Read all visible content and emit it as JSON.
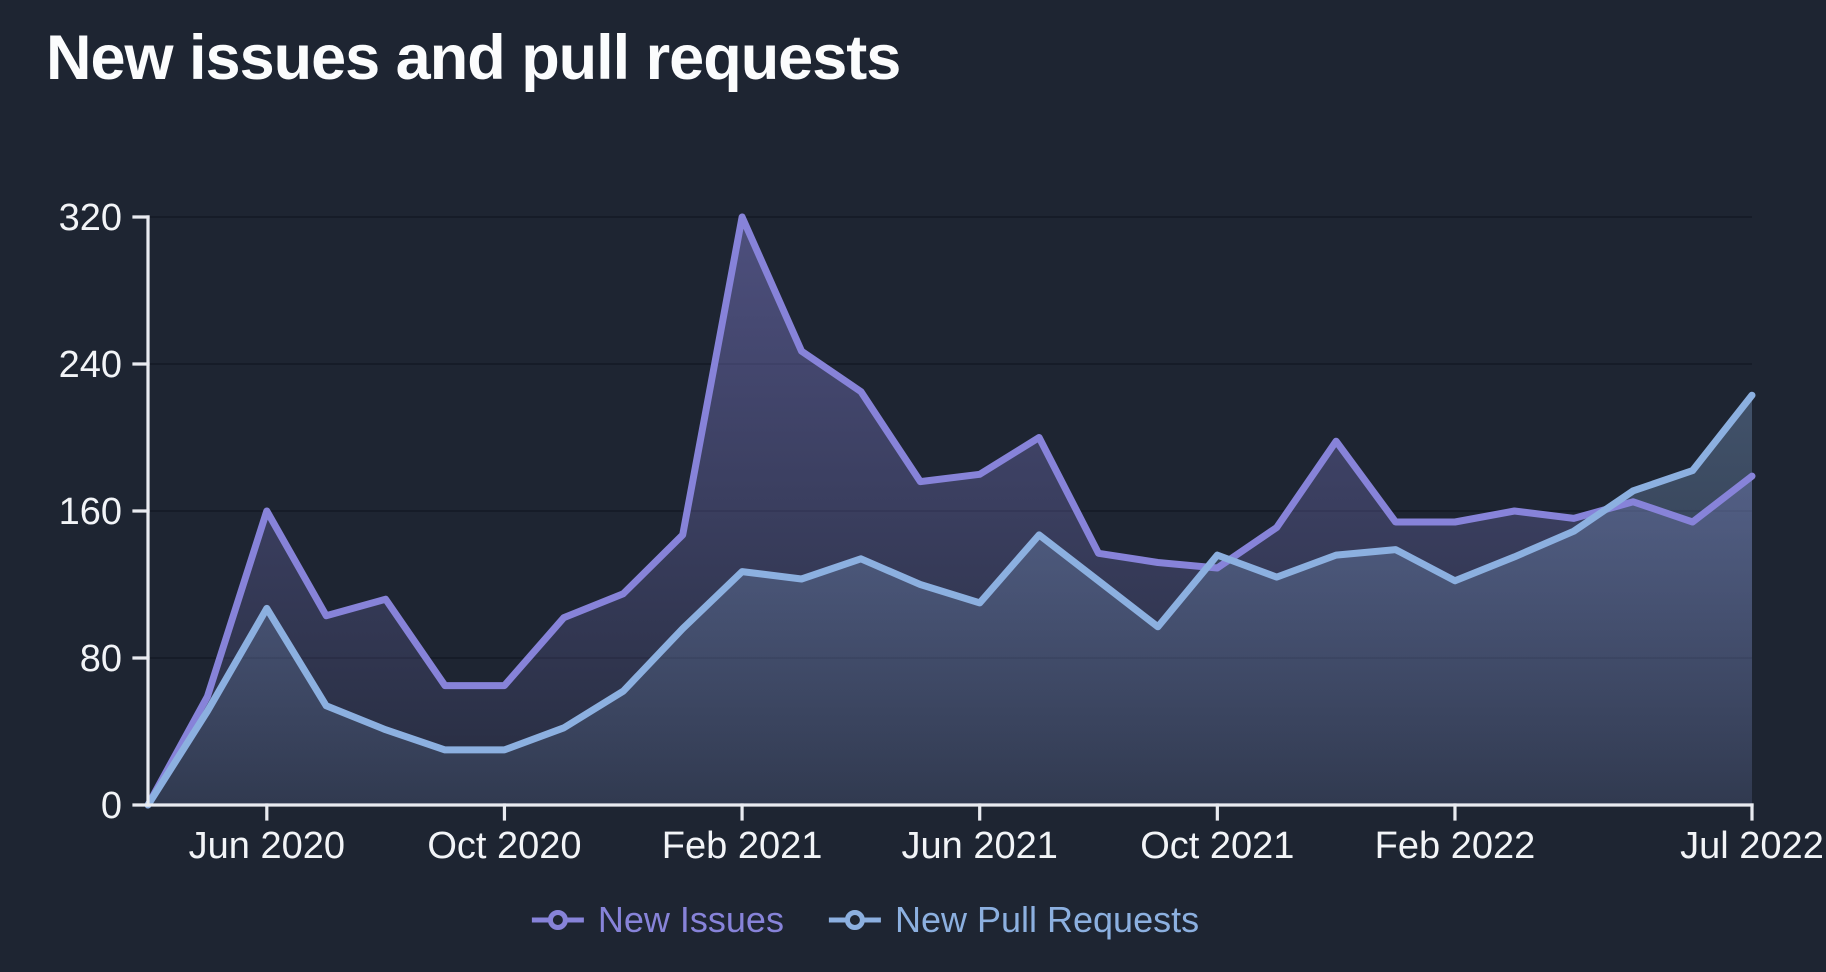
{
  "chart_data": {
    "type": "area",
    "title": "New issues and pull requests",
    "x": [
      "Apr 2020",
      "May 2020",
      "Jun 2020",
      "Jul 2020",
      "Aug 2020",
      "Sep 2020",
      "Oct 2020",
      "Nov 2020",
      "Dec 2020",
      "Jan 2021",
      "Feb 2021",
      "Mar 2021",
      "Apr 2021",
      "May 2021",
      "Jun 2021",
      "Jul 2021",
      "Aug 2021",
      "Sep 2021",
      "Oct 2021",
      "Nov 2021",
      "Dec 2021",
      "Jan 2022",
      "Feb 2022",
      "Mar 2022",
      "Apr 2022",
      "May 2022",
      "Jun 2022",
      "Jul 2022"
    ],
    "series": [
      {
        "name": "New Issues",
        "color": "#8783D9",
        "values": [
          0,
          59,
          160,
          103,
          112,
          65,
          65,
          102,
          115,
          147,
          320,
          247,
          225,
          176,
          180,
          200,
          137,
          132,
          129,
          151,
          198,
          154,
          154,
          160,
          156,
          165,
          154,
          179
        ]
      },
      {
        "name": "New Pull Requests",
        "color": "#8CB0E0",
        "values": [
          0,
          51,
          107,
          54,
          41,
          30,
          30,
          42,
          62,
          96,
          127,
          123,
          134,
          120,
          110,
          147,
          122,
          97,
          136,
          124,
          136,
          139,
          122,
          135,
          149,
          171,
          182,
          223
        ]
      }
    ],
    "x_ticks": [
      {
        "index": 2,
        "label": "Jun 2020"
      },
      {
        "index": 6,
        "label": "Oct 2020"
      },
      {
        "index": 10,
        "label": "Feb 2021"
      },
      {
        "index": 14,
        "label": "Jun 2021"
      },
      {
        "index": 18,
        "label": "Oct 2021"
      },
      {
        "index": 22,
        "label": "Feb 2022"
      },
      {
        "index": 27,
        "label": "Jul 2022"
      }
    ],
    "y_ticks": [
      0,
      80,
      160,
      240,
      320
    ],
    "ylim": [
      0,
      320
    ],
    "grid": "horizontal",
    "legend_position": "bottom",
    "background": "#1E2532",
    "axis_color": "#E9EBF0",
    "text_color": "#F2F4F7",
    "gridline_color": "rgba(10,14,26,0.4)"
  }
}
